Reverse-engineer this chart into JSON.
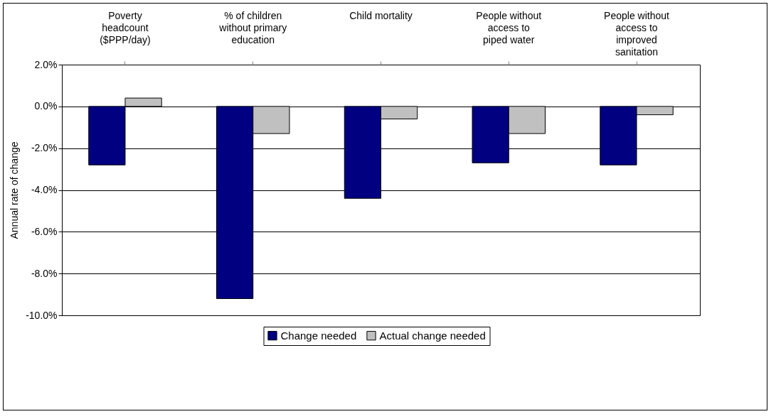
{
  "chart_data": {
    "type": "bar",
    "ylabel": "Annual rate of change",
    "categories": [
      "Poverty\nheadcount\n($PPP/day)",
      "% of children\nwithout primary\neducation",
      "Child mortality",
      "People without\naccess to\npiped water",
      "People without\naccess to\nimproved\nsanitation"
    ],
    "series": [
      {
        "name": "Change needed",
        "color": "#000080",
        "values": [
          -2.8,
          -9.2,
          -4.4,
          -2.7,
          -2.8
        ]
      },
      {
        "name": "Actual change needed",
        "color": "#c0c0c0",
        "values": [
          0.4,
          -1.3,
          -0.6,
          -1.3,
          -0.4
        ]
      }
    ],
    "ylim": [
      -10,
      2
    ],
    "yticks": [
      {
        "value": -10,
        "label": "-10.0%"
      },
      {
        "value": -8,
        "label": "-8.0%"
      },
      {
        "value": -6,
        "label": "-6.0%"
      },
      {
        "value": -4,
        "label": "-4.0%"
      },
      {
        "value": -2,
        "label": "-2.0%"
      },
      {
        "value": 0,
        "label": "0.0%"
      },
      {
        "value": 2,
        "label": "2.0%"
      }
    ],
    "grid": "y",
    "legend": "bottom"
  }
}
